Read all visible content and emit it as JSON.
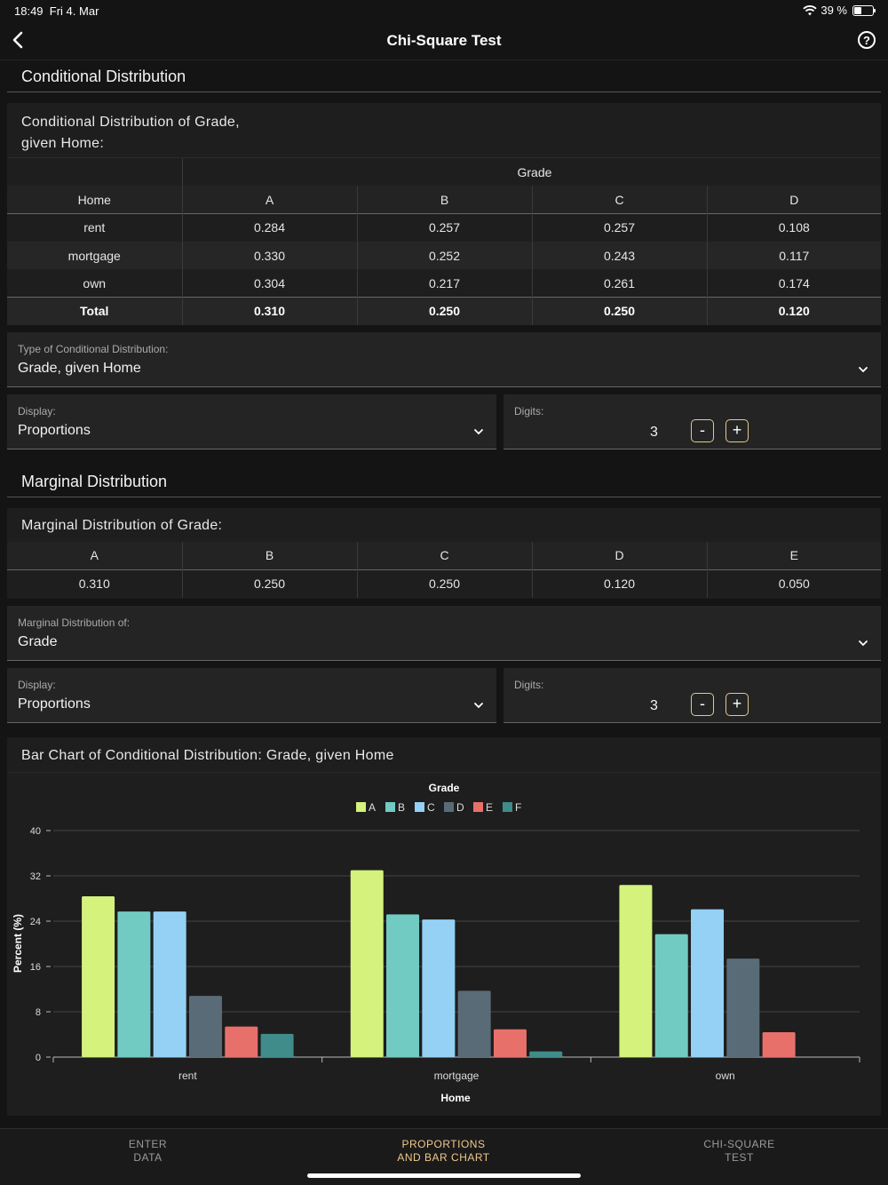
{
  "status": {
    "time": "18:49",
    "date": "Fri 4. Mar",
    "battery": "39 %"
  },
  "nav": {
    "title": "Chi-Square Test"
  },
  "conditional": {
    "section_title": "Conditional Distribution",
    "card_title_line1": "Conditional Distribution of Grade,",
    "card_title_line2": "given Home:",
    "group_header": "Grade",
    "row_header": "Home",
    "columns": [
      "A",
      "B",
      "C",
      "D"
    ],
    "rows": [
      {
        "label": "rent",
        "values": [
          "0.284",
          "0.257",
          "0.257",
          "0.108"
        ]
      },
      {
        "label": "mortgage",
        "values": [
          "0.330",
          "0.252",
          "0.243",
          "0.117"
        ]
      },
      {
        "label": "own",
        "values": [
          "0.304",
          "0.217",
          "0.261",
          "0.174"
        ]
      }
    ],
    "total": {
      "label": "Total",
      "values": [
        "0.310",
        "0.250",
        "0.250",
        "0.120"
      ]
    },
    "type_label": "Type of Conditional Distribution:",
    "type_value": "Grade, given Home",
    "display_label": "Display:",
    "display_value": "Proportions",
    "digits_label": "Digits:",
    "digits_value": "3",
    "minus": "-",
    "plus": "+"
  },
  "marginal": {
    "section_title": "Marginal Distribution",
    "card_title": "Marginal Distribution of Grade:",
    "columns": [
      "A",
      "B",
      "C",
      "D",
      "E"
    ],
    "values": [
      "0.310",
      "0.250",
      "0.250",
      "0.120",
      "0.050"
    ],
    "of_label": "Marginal Distribution of:",
    "of_value": "Grade",
    "display_label": "Display:",
    "display_value": "Proportions",
    "digits_label": "Digits:",
    "digits_value": "3",
    "minus": "-",
    "plus": "+"
  },
  "barchart": {
    "card_title": "Bar Chart of Conditional Distribution: Grade, given Home"
  },
  "chart_data": {
    "type": "bar",
    "legend_title": "Grade",
    "xlabel": "Home",
    "ylabel": "Percent (%)",
    "ylim": [
      0,
      40
    ],
    "yticks": [
      0,
      8,
      16,
      24,
      32,
      40
    ],
    "categories": [
      "rent",
      "mortgage",
      "own"
    ],
    "series": [
      {
        "name": "A",
        "color": "#d4f27c",
        "values": [
          28.4,
          33.0,
          30.4
        ]
      },
      {
        "name": "B",
        "color": "#72cbc2",
        "values": [
          25.7,
          25.2,
          21.7
        ]
      },
      {
        "name": "C",
        "color": "#94d1f5",
        "values": [
          25.7,
          24.3,
          26.1
        ]
      },
      {
        "name": "D",
        "color": "#5a6b78",
        "values": [
          10.8,
          11.7,
          17.4
        ]
      },
      {
        "name": "E",
        "color": "#e8706b",
        "values": [
          5.4,
          4.9,
          4.4
        ]
      },
      {
        "name": "F",
        "color": "#3f8c8a",
        "values": [
          4.1,
          1.0,
          0
        ]
      }
    ],
    "legend": "top-center",
    "grid": true
  },
  "tabs": [
    {
      "line1": "ENTER",
      "line2": "DATA"
    },
    {
      "line1": "PROPORTIONS",
      "line2": "AND BAR CHART"
    },
    {
      "line1": "CHI-SQUARE",
      "line2": "TEST"
    }
  ]
}
